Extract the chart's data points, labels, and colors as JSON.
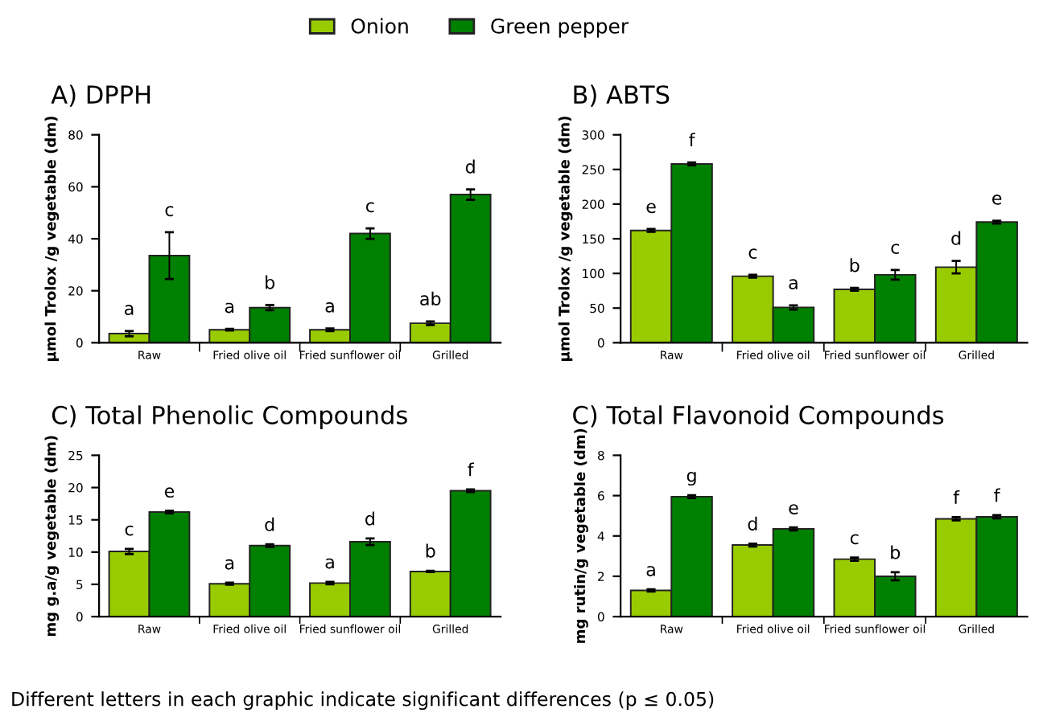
{
  "chart_data": [
    {
      "type": "bar",
      "title": "A) DPPH",
      "ylabel": "µmol Trolox /g vegetable (dm)",
      "categories": [
        "Raw",
        "Fried olive oil",
        "Fried sunflower oil",
        "Grilled"
      ],
      "ylim": [
        0,
        80
      ],
      "yticks": [
        0,
        20,
        40,
        60,
        80
      ],
      "legend": "top",
      "series": [
        {
          "name": "Onion",
          "color": "#99cc00",
          "values": [
            3.5,
            5,
            5,
            7.5
          ],
          "errors": [
            1,
            0.3,
            0.5,
            0.7
          ]
        },
        {
          "name": "Green pepper",
          "color": "#008000",
          "values": [
            33.5,
            13.5,
            42,
            57
          ],
          "errors": [
            9,
            1,
            2,
            2
          ]
        }
      ],
      "annotations": [
        "a",
        "c",
        "a",
        "b",
        "a",
        "c",
        "ab",
        "d"
      ]
    },
    {
      "type": "bar",
      "title": "B) ABTS",
      "ylabel": "µmol Trolox /g vegetable (dm)",
      "categories": [
        "Raw",
        "Fried olive oil",
        "Fried sunflower oil",
        "Grilled"
      ],
      "ylim": [
        0,
        300
      ],
      "yticks": [
        0,
        50,
        100,
        150,
        200,
        250,
        300
      ],
      "series": [
        {
          "color": "#99cc00",
          "values": [
            162,
            96,
            77,
            109
          ],
          "errors": [
            2,
            2,
            2,
            9
          ]
        },
        {
          "color": "#008000",
          "values": [
            258,
            51,
            98,
            174
          ],
          "errors": [
            2,
            3,
            7,
            2
          ]
        }
      ],
      "annotations": [
        "e",
        "f",
        "c",
        "a",
        "b",
        "c",
        "d",
        "e"
      ]
    },
    {
      "type": "bar",
      "title": "C) Total Phenolic Compounds",
      "ylabel": "mg g.a/g vegetable (dm)",
      "categories": [
        "Raw",
        "Fried olive oil",
        "Fried sunflower oil",
        "Grilled"
      ],
      "ylim": [
        0,
        25
      ],
      "yticks": [
        0,
        5,
        10,
        15,
        20,
        25
      ],
      "series": [
        {
          "color": "#99cc00",
          "values": [
            10.1,
            5.1,
            5.2,
            7
          ],
          "errors": [
            0.4,
            0.15,
            0.2,
            0.1
          ]
        },
        {
          "color": "#008000",
          "values": [
            16.2,
            11,
            11.6,
            19.5
          ],
          "errors": [
            0.2,
            0.2,
            0.5,
            0.2
          ]
        }
      ],
      "annotations": [
        "c",
        "e",
        "a",
        "d",
        "a",
        "d",
        "b",
        "f"
      ]
    },
    {
      "type": "bar",
      "title": "C) Total Flavonoid Compounds",
      "ylabel": "mg rutin/g vegetable (dm)",
      "categories": [
        "Raw",
        "Fried olive oil",
        "Fried sunflower oil",
        "Grilled"
      ],
      "ylim": [
        0,
        8
      ],
      "yticks": [
        0,
        2,
        4,
        6,
        8
      ],
      "series": [
        {
          "color": "#99cc00",
          "values": [
            1.3,
            3.55,
            2.85,
            4.85
          ],
          "errors": [
            0.05,
            0.07,
            0.08,
            0.08
          ]
        },
        {
          "color": "#008000",
          "values": [
            5.95,
            4.35,
            2.0,
            4.95
          ],
          "errors": [
            0.07,
            0.07,
            0.2,
            0.08
          ]
        }
      ],
      "annotations": [
        "a",
        "g",
        "d",
        "e",
        "c",
        "b",
        "f",
        "f",
        "Different letters in each graphic indicate significant differences (p ≤ 0.05)"
      ]
    }
  ]
}
